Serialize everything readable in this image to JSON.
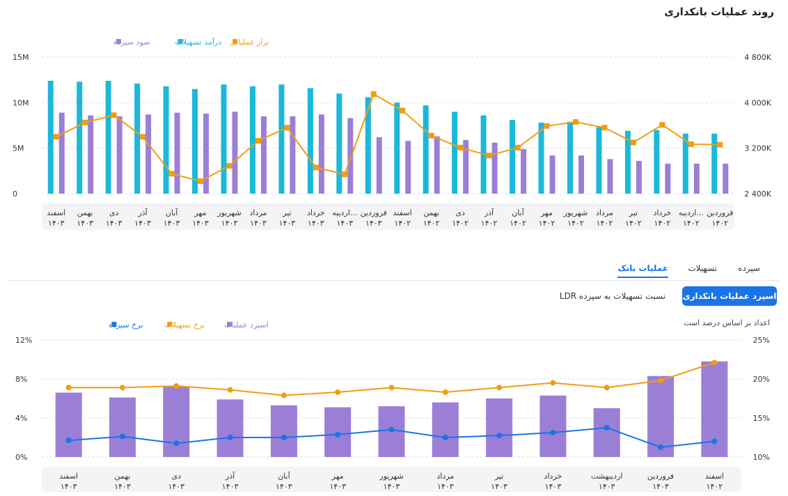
{
  "page": {
    "title": "روند عملیات بانکداری"
  },
  "tabs": [
    {
      "label": "سپرده",
      "active": false
    },
    {
      "label": "تسهیلات",
      "active": false
    },
    {
      "label": "عملیات بانک",
      "active": true
    }
  ],
  "buttons": {
    "primary": "اسپرد عملیات بانکداری",
    "secondary": "نسبت تسهیلات به سپرده LDR"
  },
  "note": "اعداد بر اساس درصد است",
  "colors": {
    "purple": "#9b7fd6",
    "cyan": "#1bb8d9",
    "orange": "#f39c12",
    "blue": "#1a73e8",
    "axisBg": "#f3f4f6"
  },
  "chart_data": [
    {
      "type": "bar",
      "legend_position": "top-right",
      "grid": true,
      "y_left": {
        "ticks": [
          "0",
          "5M",
          "10M",
          "15M"
        ],
        "min": 0,
        "max": 15
      },
      "y_right": {
        "ticks": [
          "2 400K",
          "3 200K",
          "4 000K",
          "4 800K"
        ],
        "min": 2400,
        "max": 4800
      },
      "categories": [
        [
          "فروردین",
          "۱۴۰۲"
        ],
        [
          "اردیبه...",
          "۱۴۰۲"
        ],
        [
          "خرداد",
          "۱۴۰۲"
        ],
        [
          "تیر",
          "۱۴۰۲"
        ],
        [
          "مرداد",
          "۱۴۰۲"
        ],
        [
          "شهریور",
          "۱۴۰۲"
        ],
        [
          "مهر",
          "۱۴۰۲"
        ],
        [
          "آبان",
          "۱۴۰۲"
        ],
        [
          "آذر",
          "۱۴۰۲"
        ],
        [
          "دی",
          "۱۴۰۲"
        ],
        [
          "بهمن",
          "۱۴۰۲"
        ],
        [
          "اسفند",
          "۱۴۰۲"
        ],
        [
          "فروردین",
          "۱۴۰۳"
        ],
        [
          "اردیبه...",
          "۱۴۰۳"
        ],
        [
          "خرداد",
          "۱۴۰۳"
        ],
        [
          "تیر",
          "۱۴۰۳"
        ],
        [
          "مرداد",
          "۱۴۰۳"
        ],
        [
          "شهریور",
          "۱۴۰۳"
        ],
        [
          "مهر",
          "۱۴۰۳"
        ],
        [
          "آبان",
          "۱۴۰۳"
        ],
        [
          "آذر",
          "۱۴۰۳"
        ],
        [
          "دی",
          "۱۴۰۳"
        ],
        [
          "بهمن",
          "۱۴۰۳"
        ],
        [
          "اسفند",
          "۱۴۰۳"
        ]
      ],
      "series": [
        {
          "name": "سود سپرده",
          "kind": "bar",
          "axis": "left",
          "color": "#9b7fd6",
          "values": [
            3.3,
            3.3,
            3.3,
            3.6,
            3.8,
            4.2,
            4.2,
            4.9,
            5.6,
            5.9,
            6.3,
            5.8,
            6.2,
            8.3,
            8.7,
            8.5,
            8.5,
            9.0,
            8.8,
            8.9,
            8.7,
            8.5,
            8.6,
            8.9
          ]
        },
        {
          "name": "درآمد تسهیلات",
          "kind": "bar",
          "axis": "left",
          "color": "#1bb8d9",
          "values": [
            6.6,
            6.6,
            7.0,
            6.9,
            7.3,
            7.9,
            7.8,
            8.1,
            8.6,
            9.0,
            9.7,
            10.0,
            10.6,
            11.0,
            11.6,
            12.0,
            11.8,
            12.0,
            11.5,
            11.8,
            12.1,
            12.4,
            12.3,
            12.4
          ]
        },
        {
          "name": "تراز عملیاتی",
          "kind": "line",
          "axis": "right",
          "color": "#f39c12",
          "values": [
            3260,
            3270,
            3610,
            3300,
            3560,
            3660,
            3590,
            3210,
            3070,
            3210,
            3420,
            3860,
            4150,
            2740,
            2860,
            3560,
            3330,
            2890,
            2620,
            2750,
            3400,
            3780,
            3650,
            3400
          ]
        }
      ]
    },
    {
      "type": "bar",
      "legend_position": "top-left",
      "grid": true,
      "y_left": {
        "ticks": [
          "0%",
          "4%",
          "8%",
          "12%"
        ],
        "min": 0,
        "max": 12
      },
      "y_right": {
        "ticks": [
          "10%",
          "15%",
          "20%",
          "25%"
        ],
        "min": 10,
        "max": 25
      },
      "categories": [
        [
          "اسفند",
          "۱۴۰۲"
        ],
        [
          "فروردین",
          "۱۴۰۳"
        ],
        [
          "اردیبهشت",
          "۱۴۰۳"
        ],
        [
          "خرداد",
          "۱۴۰۳"
        ],
        [
          "تیر",
          "۱۴۰۳"
        ],
        [
          "مرداد",
          "۱۴۰۳"
        ],
        [
          "شهریور",
          "۱۴۰۳"
        ],
        [
          "مهر",
          "۱۴۰۳"
        ],
        [
          "آبان",
          "۱۴۰۳"
        ],
        [
          "آذر",
          "۱۴۰۳"
        ],
        [
          "دی",
          "۱۴۰۳"
        ],
        [
          "بهمن",
          "۱۴۰۳"
        ],
        [
          "اسفند",
          "۱۴۰۳"
        ]
      ],
      "series": [
        {
          "name": "اسپرد عملیات",
          "kind": "bar",
          "axis": "left",
          "color": "#9b7fd6",
          "values": [
            9.8,
            8.3,
            5.0,
            6.3,
            6.0,
            5.6,
            5.2,
            5.1,
            5.3,
            5.9,
            7.2,
            6.1,
            6.6
          ]
        },
        {
          "name": "نرخ تسهیلات",
          "kind": "line",
          "axis": "right",
          "color": "#f39c12",
          "values": [
            22.1,
            19.8,
            18.9,
            19.5,
            18.9,
            18.3,
            18.9,
            18.3,
            17.9,
            18.6,
            19.1,
            18.9,
            18.9
          ]
        },
        {
          "name": "نرخ سپرده",
          "kind": "line",
          "axis": "left",
          "color": "#1a73e8",
          "values": [
            1.6,
            1.0,
            3.0,
            2.5,
            2.2,
            2.0,
            2.8,
            2.3,
            2.0,
            2.0,
            1.4,
            2.1,
            1.7
          ]
        }
      ]
    }
  ]
}
